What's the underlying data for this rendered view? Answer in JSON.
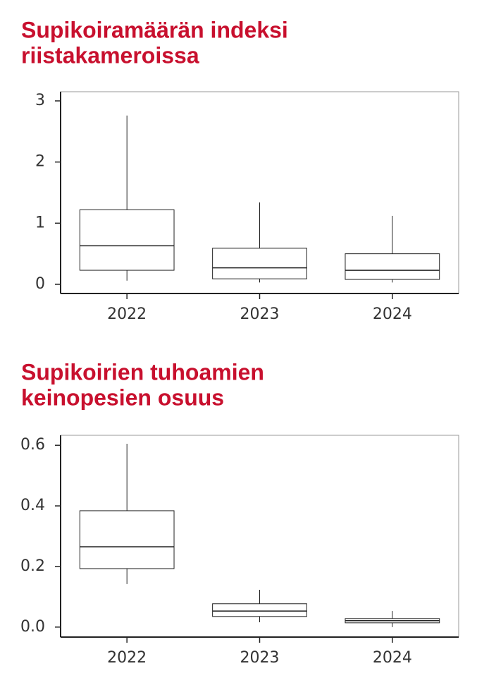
{
  "chart_data": [
    {
      "type": "box",
      "title": [
        "Supikoiramäärän indeksi",
        "riistakameroissa"
      ],
      "categories": [
        "2022",
        "2023",
        "2024"
      ],
      "boxes": [
        {
          "low": 0.06,
          "q1": 0.23,
          "median": 0.63,
          "q3": 1.22,
          "high": 2.76
        },
        {
          "low": 0.03,
          "q1": 0.09,
          "median": 0.27,
          "q3": 0.59,
          "high": 1.34
        },
        {
          "low": 0.03,
          "q1": 0.08,
          "median": 0.23,
          "q3": 0.5,
          "high": 1.12
        }
      ],
      "color": "#222222",
      "title_color": "#c8102e",
      "ylim": [
        -0.15,
        3.15
      ],
      "yticks": [
        0,
        1,
        2,
        3
      ]
    },
    {
      "type": "box",
      "title": [
        "Supikoirien tuhoamien",
        "keinopesien osuus"
      ],
      "categories": [
        "2022",
        "2023",
        "2024"
      ],
      "boxes": [
        {
          "low": 0.142,
          "q1": 0.193,
          "median": 0.265,
          "q3": 0.384,
          "high": 0.605
        },
        {
          "low": 0.016,
          "q1": 0.035,
          "median": 0.053,
          "q3": 0.077,
          "high": 0.123
        },
        {
          "low": 0,
          "q1": 0.014,
          "median": 0.021,
          "q3": 0.028,
          "high": 0.053
        }
      ],
      "color": "#222222",
      "title_color": "#c8102e",
      "ylim": [
        -0.033,
        0.633
      ],
      "yticks": [
        {
          "value": 0,
          "label": "0.0"
        },
        0.2,
        0.4,
        0.6
      ]
    }
  ]
}
